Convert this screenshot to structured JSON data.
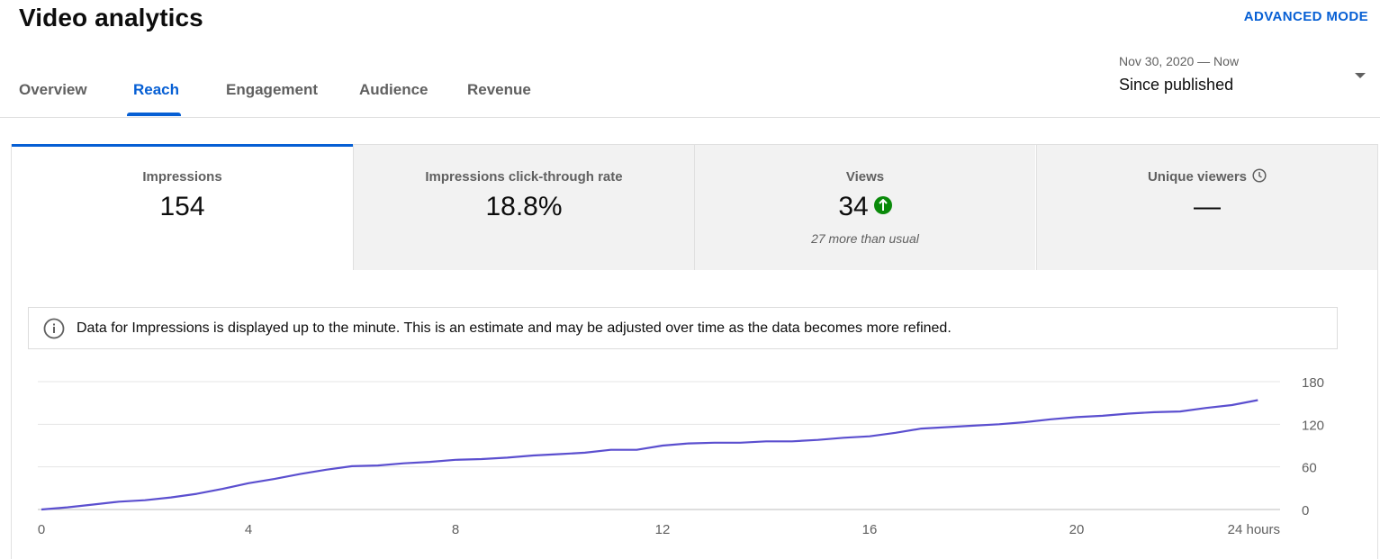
{
  "header": {
    "title": "Video analytics",
    "advanced_mode": "ADVANCED MODE"
  },
  "tabs": [
    {
      "label": "Overview",
      "active": false
    },
    {
      "label": "Reach",
      "active": true
    },
    {
      "label": "Engagement",
      "active": false
    },
    {
      "label": "Audience",
      "active": false
    },
    {
      "label": "Revenue",
      "active": false
    }
  ],
  "date_range": {
    "range": "Nov 30, 2020 — Now",
    "selected": "Since published"
  },
  "metrics": [
    {
      "label": "Impressions",
      "value": "154",
      "note": ""
    },
    {
      "label": "Impressions click-through rate",
      "value": "18.8%",
      "note": ""
    },
    {
      "label": "Views",
      "value": "34",
      "note": "27 more than usual",
      "trend_icon": "arrow-up-icon"
    },
    {
      "label": "Unique viewers",
      "value": "—",
      "note": "",
      "icon": "clock-icon"
    }
  ],
  "info": {
    "text": "Data for Impressions is displayed up to the minute. This is an estimate and may be adjusted over time as the data becomes more refined."
  },
  "colors": {
    "accent": "#065fd4",
    "line": "#5b4fcf",
    "positive": "#0a8a0a"
  },
  "chart_data": {
    "type": "line",
    "xlabel": "",
    "ylabel": "",
    "x_ticks": [
      "0",
      "4",
      "8",
      "12",
      "16",
      "20",
      "24 hours"
    ],
    "x_tick_values": [
      0,
      4,
      8,
      12,
      16,
      20,
      24
    ],
    "y_ticks": [
      "0",
      "60",
      "120",
      "180"
    ],
    "y_tick_values": [
      0,
      60,
      120,
      180
    ],
    "xlim": [
      0,
      24
    ],
    "ylim": [
      0,
      180
    ],
    "grid": true,
    "series": [
      {
        "x": [
          0,
          0.5,
          1,
          1.5,
          2,
          2.5,
          3,
          3.5,
          4,
          4.5,
          5,
          5.5,
          6,
          6.5,
          7,
          7.5,
          8,
          8.5,
          9,
          9.5,
          10,
          10.5,
          11,
          11.5,
          12,
          12.5,
          13,
          13.5,
          14,
          14.5,
          15,
          15.5,
          16,
          16.5,
          17,
          17.5,
          18,
          18.5,
          19,
          19.5,
          20,
          20.5,
          21,
          21.5,
          22,
          22.5,
          23,
          23.5
        ],
        "y": [
          0,
          3,
          7,
          11,
          13,
          17,
          22,
          29,
          37,
          43,
          50,
          56,
          61,
          62,
          65,
          67,
          70,
          71,
          73,
          76,
          78,
          80,
          84,
          84,
          90,
          93,
          94,
          94,
          96,
          96,
          98,
          101,
          103,
          108,
          114,
          116,
          118,
          120,
          123,
          127,
          130,
          132,
          135,
          137,
          138,
          143,
          147,
          154
        ]
      }
    ]
  }
}
